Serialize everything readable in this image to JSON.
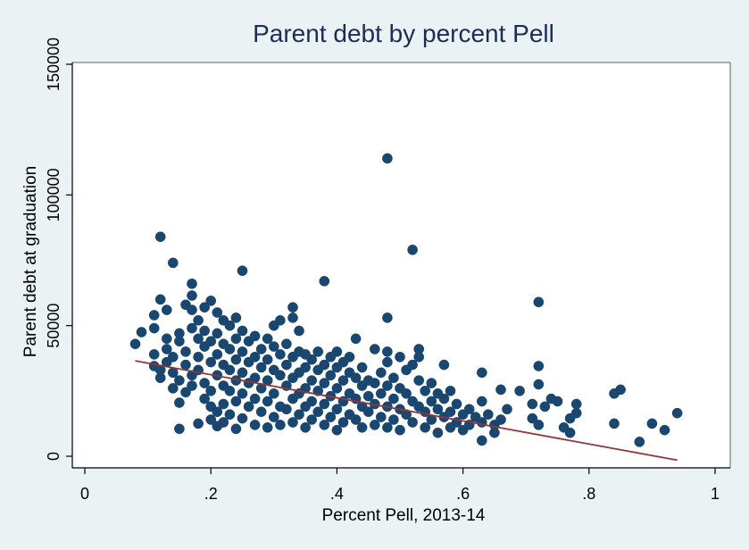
{
  "chart_data": {
    "type": "scatter",
    "title": "Parent debt by percent Pell",
    "xlabel": "Percent Pell, 2013-14",
    "ylabel": "Parent debt at graduation",
    "xlim": [
      -0.02,
      1.02
    ],
    "ylim": [
      -3000,
      155000
    ],
    "x_ticks": [
      0,
      0.2,
      0.4,
      0.6,
      0.8,
      1
    ],
    "x_tick_labels": [
      "0",
      ".2",
      ".4",
      ".6",
      ".8",
      "1"
    ],
    "y_ticks": [
      0,
      50000,
      100000,
      150000
    ],
    "y_tick_labels": [
      "0",
      "50000",
      "100000",
      "150000"
    ],
    "grid": false,
    "legend": "none",
    "colors": {
      "background": "#eaf2f3",
      "plot_background": "#ffffff",
      "marker": "#1a476f",
      "fit_line": "#90353b",
      "text": "#000000",
      "title": "#1e2c56"
    },
    "fit_line": {
      "x": [
        0.08,
        0.94
      ],
      "y": [
        36500,
        -1500
      ]
    },
    "series": [
      {
        "marker": "circle",
        "points": [
          [
            0.08,
            43000
          ],
          [
            0.09,
            47500
          ],
          [
            0.11,
            34500
          ],
          [
            0.11,
            39000
          ],
          [
            0.11,
            49000
          ],
          [
            0.11,
            54000
          ],
          [
            0.12,
            60000
          ],
          [
            0.12,
            84000
          ],
          [
            0.12,
            30000
          ],
          [
            0.12,
            33000
          ],
          [
            0.13,
            45000
          ],
          [
            0.13,
            56000
          ],
          [
            0.13,
            36000
          ],
          [
            0.13,
            41000
          ],
          [
            0.14,
            74000
          ],
          [
            0.14,
            26000
          ],
          [
            0.14,
            32000
          ],
          [
            0.14,
            38000
          ],
          [
            0.15,
            10500
          ],
          [
            0.15,
            20500
          ],
          [
            0.15,
            44000
          ],
          [
            0.15,
            47000
          ],
          [
            0.15,
            29000
          ],
          [
            0.16,
            58000
          ],
          [
            0.16,
            35000
          ],
          [
            0.16,
            24500
          ],
          [
            0.16,
            40000
          ],
          [
            0.17,
            66000
          ],
          [
            0.17,
            61500
          ],
          [
            0.17,
            56000
          ],
          [
            0.17,
            49000
          ],
          [
            0.17,
            31000
          ],
          [
            0.17,
            27000
          ],
          [
            0.18,
            52000
          ],
          [
            0.18,
            45000
          ],
          [
            0.18,
            38000
          ],
          [
            0.18,
            33000
          ],
          [
            0.18,
            12500
          ],
          [
            0.19,
            48000
          ],
          [
            0.19,
            42000
          ],
          [
            0.19,
            28000
          ],
          [
            0.19,
            22000
          ],
          [
            0.19,
            57000
          ],
          [
            0.2,
            59500
          ],
          [
            0.2,
            44000
          ],
          [
            0.2,
            36000
          ],
          [
            0.2,
            25000
          ],
          [
            0.2,
            19000
          ],
          [
            0.2,
            14000
          ],
          [
            0.21,
            55000
          ],
          [
            0.21,
            47000
          ],
          [
            0.21,
            39000
          ],
          [
            0.21,
            31000
          ],
          [
            0.21,
            17000
          ],
          [
            0.21,
            11500
          ],
          [
            0.22,
            52000
          ],
          [
            0.22,
            43000
          ],
          [
            0.22,
            35000
          ],
          [
            0.22,
            27000
          ],
          [
            0.22,
            20000
          ],
          [
            0.22,
            13000
          ],
          [
            0.23,
            50000
          ],
          [
            0.23,
            41000
          ],
          [
            0.23,
            33000
          ],
          [
            0.23,
            25000
          ],
          [
            0.23,
            16000
          ],
          [
            0.24,
            53000
          ],
          [
            0.24,
            45000
          ],
          [
            0.24,
            37000
          ],
          [
            0.24,
            29000
          ],
          [
            0.24,
            21000
          ],
          [
            0.24,
            10500
          ],
          [
            0.25,
            71000
          ],
          [
            0.25,
            48000
          ],
          [
            0.25,
            40000
          ],
          [
            0.25,
            32000
          ],
          [
            0.25,
            24000
          ],
          [
            0.25,
            14500
          ],
          [
            0.26,
            44000
          ],
          [
            0.26,
            36000
          ],
          [
            0.26,
            28000
          ],
          [
            0.26,
            19000
          ],
          [
            0.27,
            46000
          ],
          [
            0.27,
            38000
          ],
          [
            0.27,
            30000
          ],
          [
            0.27,
            22000
          ],
          [
            0.27,
            12000
          ],
          [
            0.28,
            41000
          ],
          [
            0.28,
            34000
          ],
          [
            0.28,
            26000
          ],
          [
            0.28,
            17000
          ],
          [
            0.29,
            45000
          ],
          [
            0.29,
            37000
          ],
          [
            0.29,
            29000
          ],
          [
            0.29,
            21000
          ],
          [
            0.29,
            11000
          ],
          [
            0.3,
            50000
          ],
          [
            0.3,
            42000
          ],
          [
            0.3,
            33000
          ],
          [
            0.3,
            24000
          ],
          [
            0.3,
            15000
          ],
          [
            0.31,
            52000
          ],
          [
            0.31,
            39000
          ],
          [
            0.31,
            31000
          ],
          [
            0.31,
            19000
          ],
          [
            0.31,
            12000
          ],
          [
            0.32,
            43000
          ],
          [
            0.32,
            35000
          ],
          [
            0.32,
            27000
          ],
          [
            0.32,
            18000
          ],
          [
            0.33,
            57000
          ],
          [
            0.33,
            53000
          ],
          [
            0.33,
            38000
          ],
          [
            0.33,
            30000
          ],
          [
            0.33,
            22000
          ],
          [
            0.33,
            13000
          ],
          [
            0.34,
            48000
          ],
          [
            0.34,
            40000
          ],
          [
            0.34,
            32000
          ],
          [
            0.34,
            24000
          ],
          [
            0.34,
            16000
          ],
          [
            0.35,
            39000
          ],
          [
            0.35,
            34000
          ],
          [
            0.35,
            26000
          ],
          [
            0.35,
            19000
          ],
          [
            0.35,
            11000
          ],
          [
            0.36,
            37000
          ],
          [
            0.36,
            29000
          ],
          [
            0.36,
            21000
          ],
          [
            0.36,
            14000
          ],
          [
            0.37,
            40000
          ],
          [
            0.37,
            33000
          ],
          [
            0.37,
            25000
          ],
          [
            0.37,
            17000
          ],
          [
            0.38,
            67000
          ],
          [
            0.38,
            35000
          ],
          [
            0.38,
            28000
          ],
          [
            0.38,
            20000
          ],
          [
            0.38,
            12000
          ],
          [
            0.39,
            38000
          ],
          [
            0.39,
            31000
          ],
          [
            0.39,
            23000
          ],
          [
            0.39,
            15000
          ],
          [
            0.4,
            40000
          ],
          [
            0.4,
            34000
          ],
          [
            0.4,
            26000
          ],
          [
            0.4,
            18000
          ],
          [
            0.4,
            10000
          ],
          [
            0.41,
            36000
          ],
          [
            0.41,
            29000
          ],
          [
            0.41,
            21000
          ],
          [
            0.41,
            13000
          ],
          [
            0.42,
            38000
          ],
          [
            0.42,
            32000
          ],
          [
            0.42,
            24000
          ],
          [
            0.42,
            16000
          ],
          [
            0.43,
            45000
          ],
          [
            0.43,
            30000
          ],
          [
            0.43,
            22000
          ],
          [
            0.43,
            14000
          ],
          [
            0.44,
            34000
          ],
          [
            0.44,
            27000
          ],
          [
            0.44,
            19000
          ],
          [
            0.44,
            11000
          ],
          [
            0.45,
            29000
          ],
          [
            0.45,
            23000
          ],
          [
            0.45,
            17000
          ],
          [
            0.46,
            41000
          ],
          [
            0.46,
            28000
          ],
          [
            0.46,
            20000
          ],
          [
            0.46,
            12000
          ],
          [
            0.47,
            32000
          ],
          [
            0.47,
            24000
          ],
          [
            0.47,
            15000
          ],
          [
            0.48,
            114000
          ],
          [
            0.48,
            53000
          ],
          [
            0.48,
            40000
          ],
          [
            0.48,
            36000
          ],
          [
            0.48,
            27000
          ],
          [
            0.48,
            19000
          ],
          [
            0.48,
            11000
          ],
          [
            0.49,
            30000
          ],
          [
            0.49,
            22000
          ],
          [
            0.49,
            14000
          ],
          [
            0.5,
            38000
          ],
          [
            0.5,
            26000
          ],
          [
            0.5,
            18000
          ],
          [
            0.5,
            10000
          ],
          [
            0.51,
            33000
          ],
          [
            0.51,
            24000
          ],
          [
            0.51,
            16000
          ],
          [
            0.52,
            79000
          ],
          [
            0.52,
            35000
          ],
          [
            0.52,
            21000
          ],
          [
            0.52,
            13000
          ],
          [
            0.53,
            41000
          ],
          [
            0.53,
            38000
          ],
          [
            0.53,
            29000
          ],
          [
            0.53,
            19000
          ],
          [
            0.54,
            25000
          ],
          [
            0.54,
            17000
          ],
          [
            0.54,
            11000
          ],
          [
            0.55,
            28000
          ],
          [
            0.55,
            21000
          ],
          [
            0.55,
            14000
          ],
          [
            0.56,
            24000
          ],
          [
            0.56,
            18000
          ],
          [
            0.56,
            9000
          ],
          [
            0.57,
            35000
          ],
          [
            0.57,
            22000
          ],
          [
            0.57,
            15000
          ],
          [
            0.58,
            25000
          ],
          [
            0.58,
            17000
          ],
          [
            0.58,
            11000
          ],
          [
            0.59,
            20000
          ],
          [
            0.59,
            13000
          ],
          [
            0.6,
            16000
          ],
          [
            0.6,
            10000
          ],
          [
            0.61,
            18000
          ],
          [
            0.61,
            12000
          ],
          [
            0.62,
            15000
          ],
          [
            0.63,
            32000
          ],
          [
            0.63,
            21000
          ],
          [
            0.63,
            13000
          ],
          [
            0.63,
            6000
          ],
          [
            0.64,
            16000
          ],
          [
            0.65,
            12000
          ],
          [
            0.65,
            9000
          ],
          [
            0.66,
            25500
          ],
          [
            0.66,
            14000
          ],
          [
            0.67,
            18000
          ],
          [
            0.69,
            25000
          ],
          [
            0.71,
            20000
          ],
          [
            0.71,
            14500
          ],
          [
            0.72,
            59000
          ],
          [
            0.72,
            34500
          ],
          [
            0.72,
            27500
          ],
          [
            0.72,
            12000
          ],
          [
            0.73,
            19000
          ],
          [
            0.74,
            22000
          ],
          [
            0.75,
            21000
          ],
          [
            0.76,
            11000
          ],
          [
            0.77,
            14500
          ],
          [
            0.77,
            9000
          ],
          [
            0.78,
            20000
          ],
          [
            0.78,
            16500
          ],
          [
            0.84,
            24000
          ],
          [
            0.84,
            12500
          ],
          [
            0.85,
            25500
          ],
          [
            0.88,
            5500
          ],
          [
            0.9,
            12500
          ],
          [
            0.92,
            10000
          ],
          [
            0.94,
            16500
          ]
        ]
      }
    ]
  }
}
